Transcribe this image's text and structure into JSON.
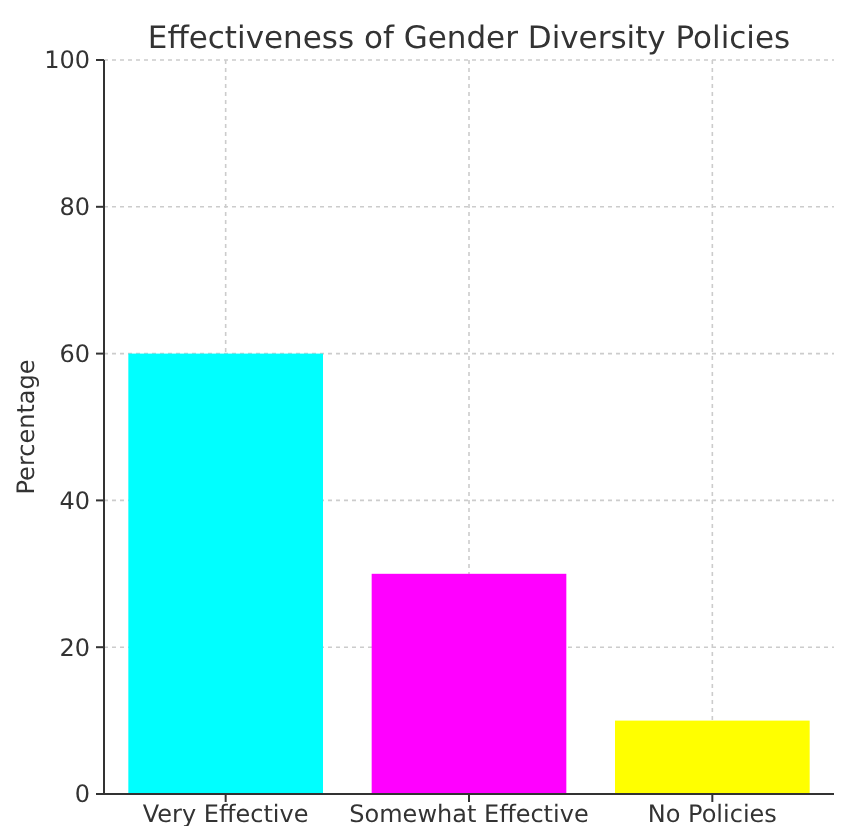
{
  "chart_data": {
    "type": "bar",
    "title": "Effectiveness of Gender Diversity Policies",
    "ylabel": "Percentage",
    "categories": [
      "Very Effective",
      "Somewhat Effective",
      "No Policies"
    ],
    "values": [
      60,
      30,
      10
    ],
    "colors": [
      "#00ffff",
      "#ff00ff",
      "#ffff00"
    ],
    "ylim": [
      0,
      100
    ],
    "yticks": [
      0,
      20,
      40,
      60,
      80,
      100
    ],
    "grid": true
  }
}
